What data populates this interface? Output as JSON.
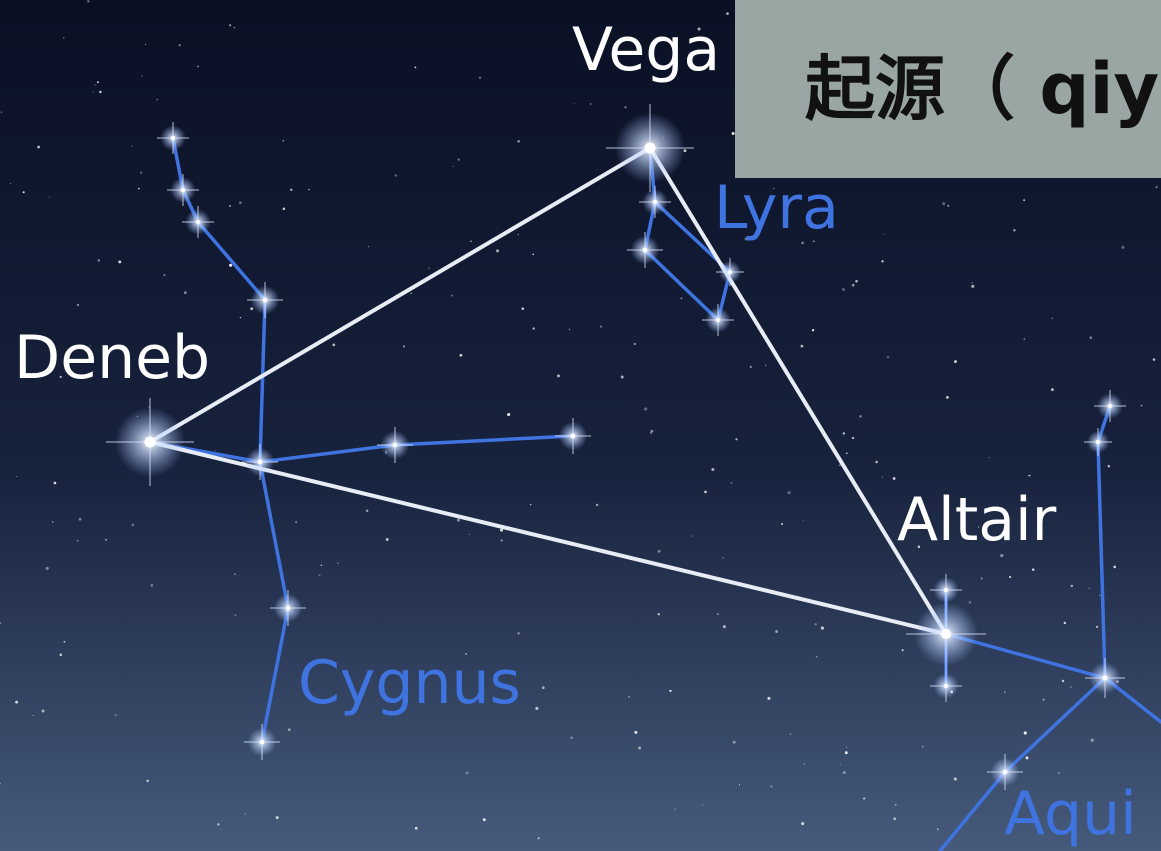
{
  "title": "起源（ qiy",
  "labels": {
    "vega": "Vega",
    "lyra": "Lyra",
    "deneb": "Deneb",
    "cygnus": "Cygnus",
    "altair": "Altair",
    "aquila": "Aqui"
  }
}
